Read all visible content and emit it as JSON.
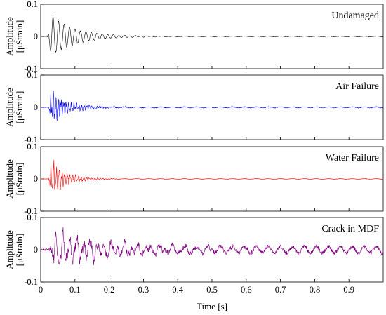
{
  "chart_data": {
    "type": "line",
    "xlabel": "Time [s]",
    "xlim": [
      0,
      1
    ],
    "x_ticks": [
      0,
      0.1,
      0.2,
      0.3,
      0.4,
      0.5,
      0.6,
      0.7,
      0.8,
      0.9
    ],
    "x_tick_labels": [
      "0",
      "0.1",
      "0.2",
      "0.3",
      "0.4",
      "0.5",
      "0.6",
      "0.7",
      "0.8",
      "0.9"
    ],
    "ylabel_line1": "Amplitude",
    "ylabel_line2": "[μStrain]",
    "ylim": [
      -0.1,
      0.1
    ],
    "y_ticks": [
      -0.1,
      0,
      0.1
    ],
    "y_tick_labels": [
      "-0.1",
      "0",
      "0.1"
    ],
    "grid": false,
    "panels": [
      {
        "title": "Undamaged",
        "color": "#000000",
        "signal": {
          "onset": 0.02,
          "peak": 0.078,
          "period": 0.016,
          "decay": 14,
          "noise": 0.08,
          "floor": 0.0008,
          "seed": 11
        }
      },
      {
        "title": "Air Failure",
        "color": "#0000ff",
        "signal": {
          "onset": 0.022,
          "peak": 0.075,
          "period": 0.0075,
          "decay": 20,
          "noise": 0.45,
          "floor": 0.0015,
          "seed": 23
        }
      },
      {
        "title": "Water Failure",
        "color": "#ff0000",
        "signal": {
          "onset": 0.022,
          "peak": 0.085,
          "period": 0.008,
          "decay": 24,
          "noise": 0.4,
          "floor": 0.0008,
          "seed": 37
        }
      },
      {
        "title": "Crack in MDF",
        "color": "#800080",
        "signal": {
          "onset": 0.025,
          "peak": 0.07,
          "period": 0.02,
          "decay": 6,
          "noise": 0.35,
          "floor": 0.01,
          "seed": 51
        }
      }
    ]
  }
}
